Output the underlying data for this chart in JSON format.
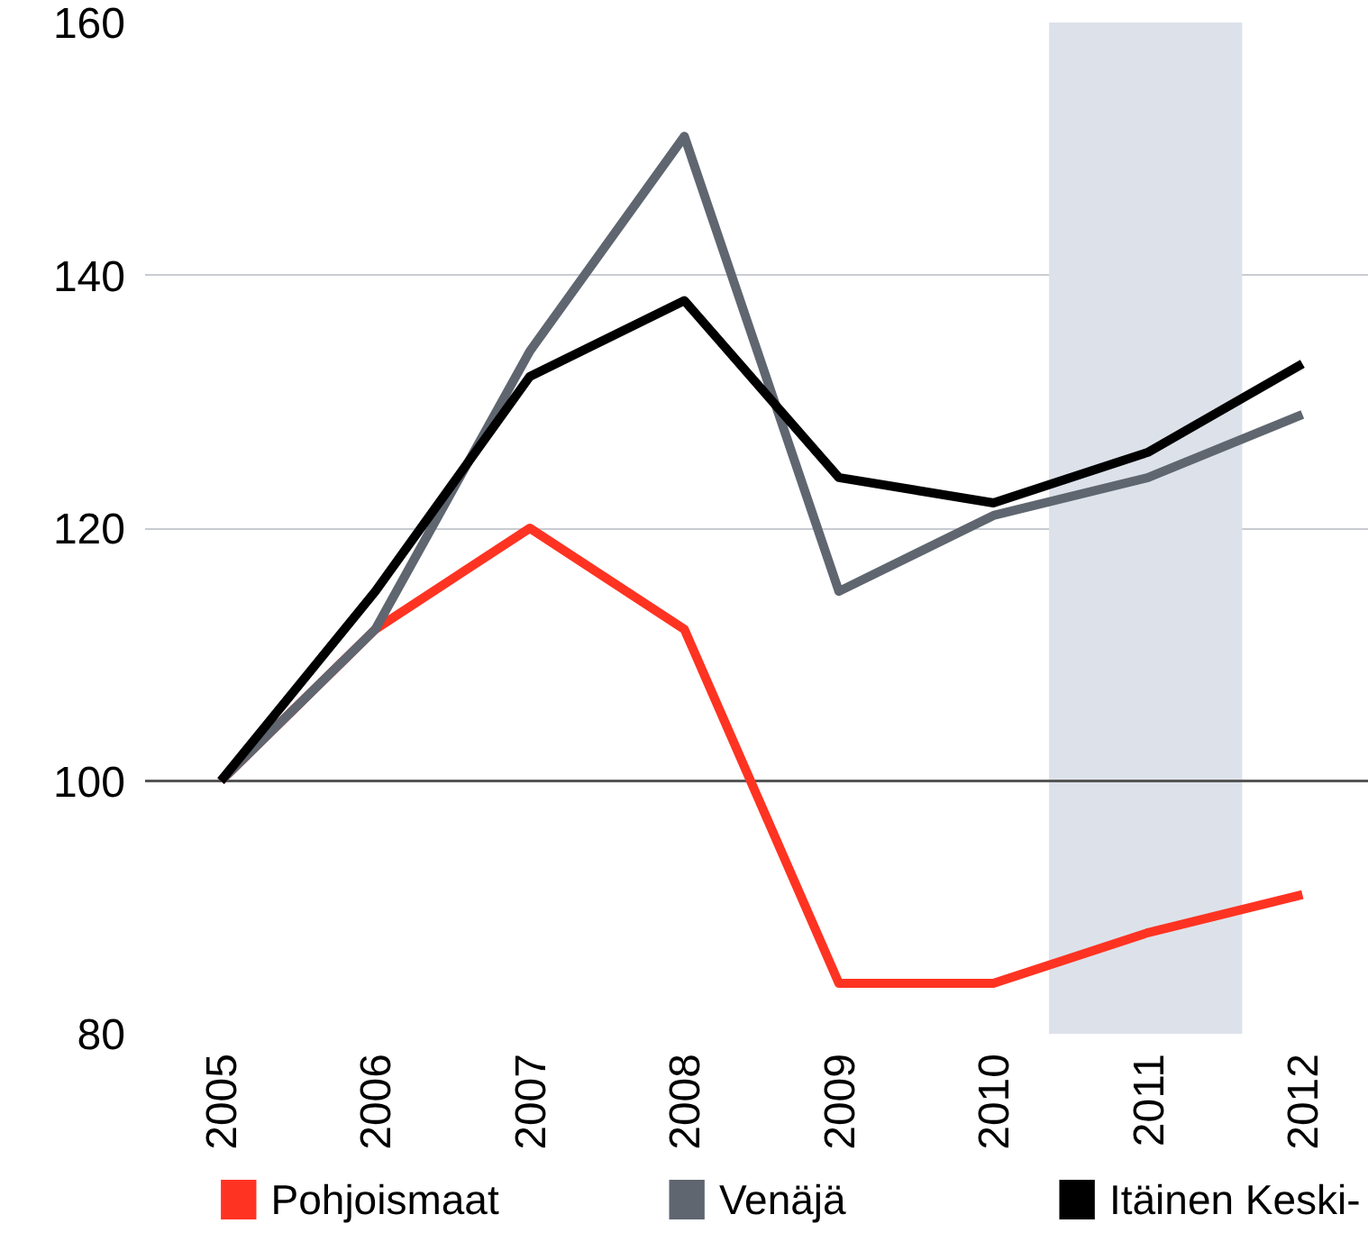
{
  "chart_data": {
    "type": "line",
    "x": [
      2005,
      2006,
      2007,
      2008,
      2009,
      2010,
      2011,
      2012
    ],
    "series": [
      {
        "name": "Pohjoismaat",
        "color": "#ff3322",
        "values": [
          100,
          112,
          120,
          112,
          84,
          84,
          88,
          91
        ]
      },
      {
        "name": "Venäjä",
        "color": "#5f6670",
        "values": [
          100,
          112,
          134,
          151,
          115,
          121,
          124,
          129
        ]
      },
      {
        "name": "Itäinen Keski-",
        "color": "#000000",
        "values": [
          100,
          115,
          132,
          138,
          124,
          122,
          126,
          133
        ]
      }
    ],
    "xlim": [
      2004.51,
      2012.43
    ],
    "xticks": [
      2005,
      2006,
      2007,
      2008,
      2009,
      2010,
      2011,
      2012
    ],
    "ylim": [
      80,
      160
    ],
    "yticks": [
      80,
      100,
      120,
      140,
      160
    ],
    "bands": [
      {
        "axis": "x",
        "from": 2010.36,
        "to": 2011.61,
        "color": "#dde2ea"
      }
    ],
    "ref_lines": [
      {
        "axis": "y",
        "value": 100,
        "color": "#555555"
      }
    ],
    "grid": "y",
    "legend": "bottom",
    "marker": "none",
    "line_style": "solid"
  }
}
